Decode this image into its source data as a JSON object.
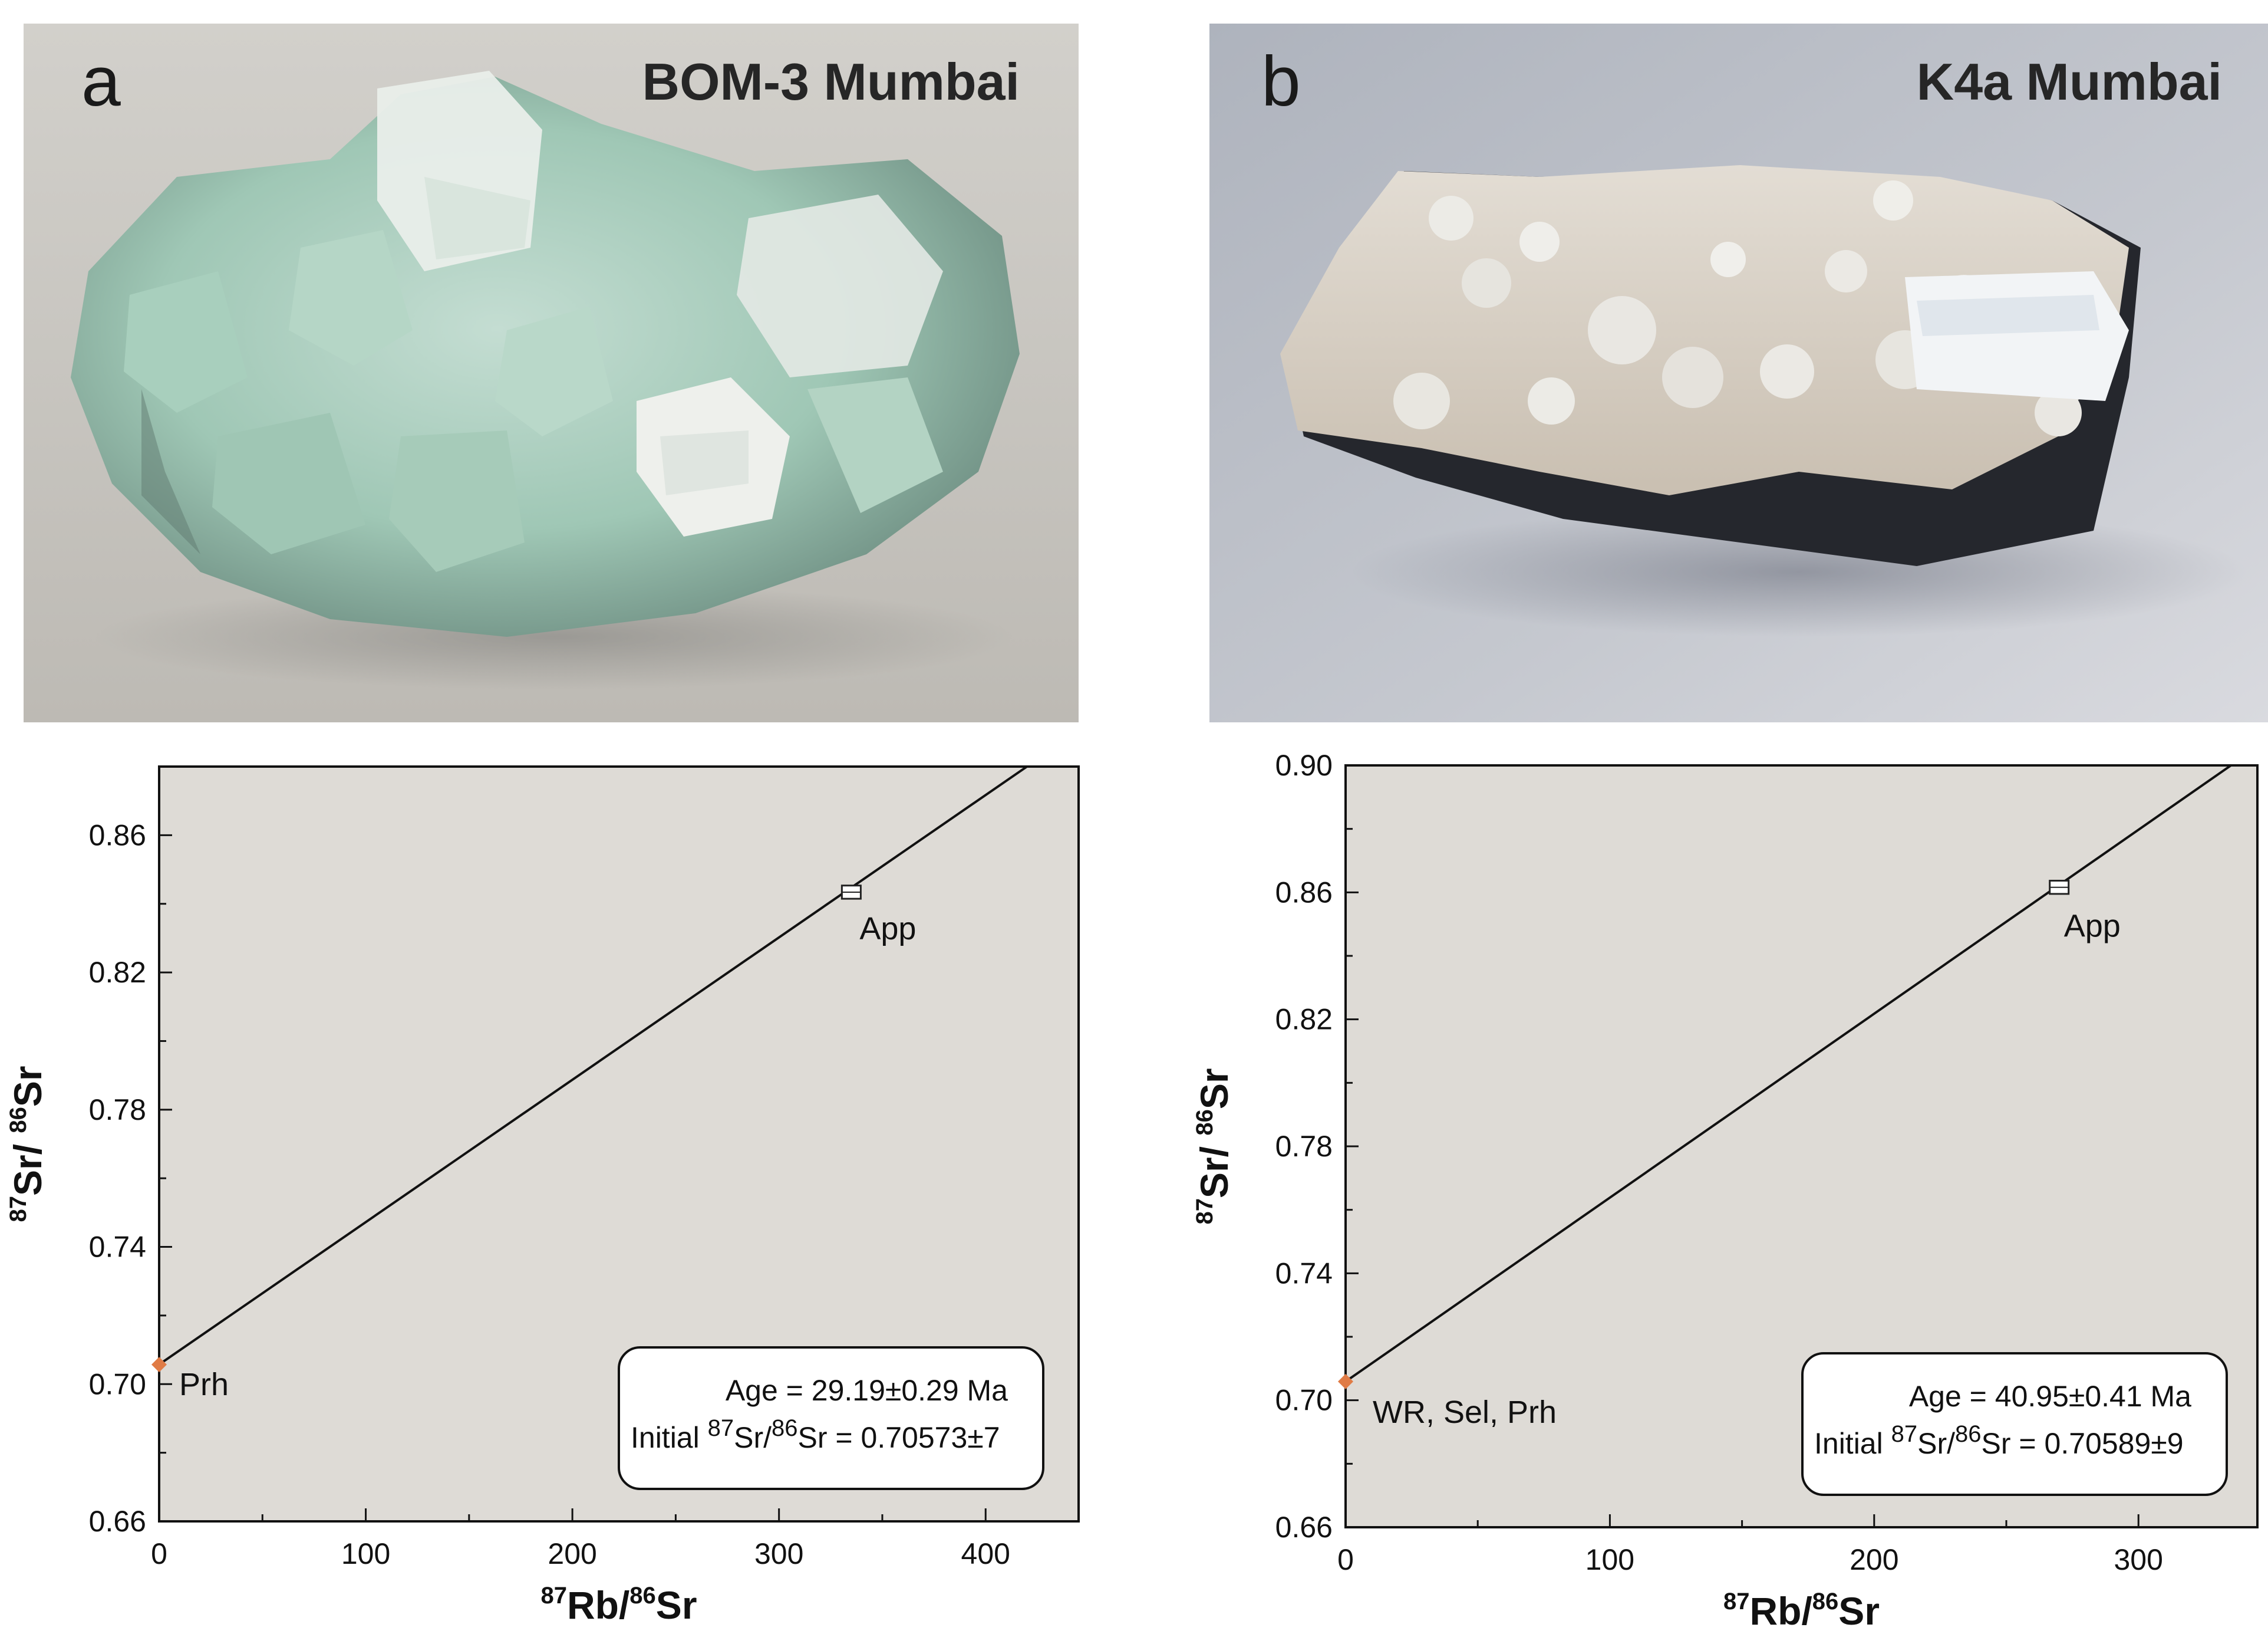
{
  "panels": [
    {
      "letter": "a",
      "sample_title": "BOM-3 Mumbai",
      "photo_palette": {
        "background": "#c9c7c2",
        "mineral_base": "#a9cbbd",
        "crystal_light": "#eef1ec",
        "shadow": "#6f7d76"
      }
    },
    {
      "letter": "b",
      "sample_title": "K4a Mumbai",
      "photo_palette": {
        "background": "#b2b6c0",
        "mineral_base": "#d8d0c5",
        "crystal_light": "#f4f4f2",
        "shadow": "#2b2d33"
      }
    }
  ],
  "chart_data": [
    {
      "type": "line",
      "xlabel": "87Rb/86Sr",
      "ylabel": "87Sr/ 86Sr",
      "xlim": [
        0,
        445
      ],
      "ylim": [
        0.66,
        0.88
      ],
      "xticks": [
        0,
        100,
        200,
        300,
        400
      ],
      "yticks": [
        0.66,
        0.7,
        0.74,
        0.78,
        0.82,
        0.86
      ],
      "ytick_labels": [
        "0.66",
        "0.70",
        "0.74",
        "0.78",
        "0.82",
        "0.86"
      ],
      "isochron": {
        "x": [
          0,
          420
        ],
        "y": [
          0.70573,
          0.88
        ]
      },
      "points": [
        {
          "label": "Prh",
          "x": 0,
          "y": 0.7057,
          "marker": "diamond",
          "color": "#e07b45"
        },
        {
          "label": "App",
          "x": 335,
          "y": 0.8434,
          "marker": "square",
          "color": "#ffffff"
        }
      ],
      "annotation": {
        "age_text": "Age = 29.19±0.29 Ma",
        "initial_prefix": "Initial ",
        "initial_ratio": "Sr/",
        "initial_value": "Sr = 0.70573±7"
      },
      "plot_background": "#dedbd6"
    },
    {
      "type": "line",
      "xlabel": "87Rb/86Sr",
      "ylabel": "87Sr/ 86Sr",
      "xlim": [
        0,
        345
      ],
      "ylim": [
        0.66,
        0.9
      ],
      "xticks": [
        0,
        100,
        200,
        300
      ],
      "yticks": [
        0.66,
        0.7,
        0.74,
        0.78,
        0.82,
        0.86,
        0.9
      ],
      "ytick_labels": [
        "0.66",
        "0.70",
        "0.74",
        "0.78",
        "0.82",
        "0.86",
        "0.90"
      ],
      "isochron": {
        "x": [
          0,
          335
        ],
        "y": [
          0.70589,
          0.9
        ]
      },
      "points": [
        {
          "label": "WR, Sel, Prh",
          "x": 0,
          "y": 0.7059,
          "marker": "diamond",
          "color": "#e07b45"
        },
        {
          "label": "App",
          "x": 270,
          "y": 0.8616,
          "marker": "square",
          "color": "#ffffff"
        }
      ],
      "annotation": {
        "age_text": "Age = 40.95±0.41 Ma",
        "initial_prefix": "Initial ",
        "initial_ratio": "Sr/",
        "initial_value": "Sr = 0.70589±9"
      },
      "plot_background": "#dedbd6"
    }
  ]
}
